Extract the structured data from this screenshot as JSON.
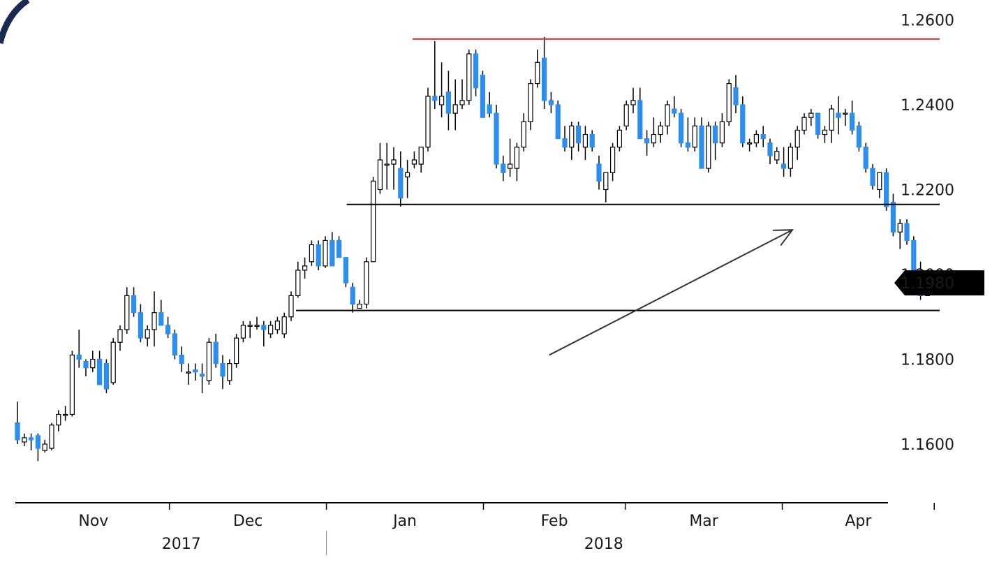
{
  "chart_data": {
    "type": "candlestick",
    "title": "",
    "xlabel": "",
    "ylabel": "",
    "ylim": [
      1.145,
      1.265
    ],
    "grid": false,
    "y_ticks": [
      "1.1600",
      "1.1800",
      "1.2000",
      "1.2200",
      "1.2400",
      "1.2600"
    ],
    "x_month_labels": [
      "Nov",
      "Dec",
      "Jan",
      "Feb",
      "Mar",
      "Apr"
    ],
    "x_year_labels": [
      "2017",
      "2018"
    ],
    "last_price_label": "1.1980",
    "last_price": 1.198,
    "horizontal_lines": [
      {
        "name": "resistance",
        "y": 1.2555,
        "x_start": "2018-01-18",
        "x_end": "2018-04-30",
        "color": "#e03030"
      },
      {
        "name": "support-upper",
        "y": 1.2165,
        "x_start": "2018-01-05",
        "x_end": "2018-04-30",
        "color": "#000000"
      },
      {
        "name": "support-lower",
        "y": 1.1915,
        "x_start": "2017-12-26",
        "x_end": "2018-04-30",
        "color": "#000000"
      }
    ],
    "arrow": {
      "from": {
        "date": "2018-02-14",
        "y": 1.181
      },
      "to": {
        "date": "2018-04-03",
        "y": 1.2105
      }
    },
    "series": [
      {
        "values": [
          [
            1.165,
            1.17,
            1.16,
            1.161
          ],
          [
            1.1605,
            1.1625,
            1.1595,
            1.1615
          ],
          [
            1.1615,
            1.1625,
            1.1585,
            1.161
          ],
          [
            1.162,
            1.1625,
            1.156,
            1.159
          ],
          [
            1.1585,
            1.161,
            1.158,
            1.16
          ],
          [
            1.159,
            1.165,
            1.1585,
            1.1645
          ],
          [
            1.1645,
            1.168,
            1.163,
            1.167
          ],
          [
            1.167,
            1.169,
            1.1655,
            1.167
          ],
          [
            1.167,
            1.182,
            1.1665,
            1.181
          ],
          [
            1.181,
            1.187,
            1.178,
            1.18
          ],
          [
            1.1795,
            1.18,
            1.176,
            1.178
          ],
          [
            1.178,
            1.182,
            1.177,
            1.18
          ],
          [
            1.18,
            1.182,
            1.174,
            1.174
          ],
          [
            1.179,
            1.18,
            1.172,
            1.173
          ],
          [
            1.1745,
            1.185,
            1.174,
            1.184
          ],
          [
            1.184,
            1.188,
            1.182,
            1.187
          ],
          [
            1.187,
            1.197,
            1.186,
            1.195
          ],
          [
            1.195,
            1.197,
            1.19,
            1.191
          ],
          [
            1.191,
            1.193,
            1.184,
            1.185
          ],
          [
            1.185,
            1.188,
            1.183,
            1.187
          ],
          [
            1.187,
            1.196,
            1.183,
            1.191
          ],
          [
            1.191,
            1.194,
            1.188,
            1.188
          ],
          [
            1.188,
            1.19,
            1.185,
            1.186
          ],
          [
            1.186,
            1.187,
            1.18,
            1.181
          ],
          [
            1.181,
            1.183,
            1.177,
            1.179
          ],
          [
            1.177,
            1.179,
            1.174,
            1.177
          ],
          [
            1.1775,
            1.179,
            1.175,
            1.177
          ],
          [
            1.1765,
            1.179,
            1.172,
            1.176
          ],
          [
            1.175,
            1.185,
            1.174,
            1.184
          ],
          [
            1.184,
            1.186,
            1.178,
            1.179
          ],
          [
            1.179,
            1.181,
            1.173,
            1.176
          ],
          [
            1.175,
            1.18,
            1.174,
            1.179
          ],
          [
            1.179,
            1.186,
            1.178,
            1.185
          ],
          [
            1.185,
            1.189,
            1.184,
            1.188
          ],
          [
            1.188,
            1.189,
            1.185,
            1.188
          ],
          [
            1.188,
            1.19,
            1.187,
            1.188
          ],
          [
            1.188,
            1.189,
            1.183,
            1.187
          ],
          [
            1.186,
            1.189,
            1.185,
            1.188
          ],
          [
            1.187,
            1.19,
            1.186,
            1.189
          ],
          [
            1.186,
            1.191,
            1.185,
            1.19
          ],
          [
            1.19,
            1.196,
            1.189,
            1.195
          ],
          [
            1.195,
            1.203,
            1.1945,
            1.201
          ],
          [
            1.201,
            1.204,
            1.199,
            1.202
          ],
          [
            1.203,
            1.208,
            1.202,
            1.207
          ],
          [
            1.207,
            1.208,
            1.201,
            1.202
          ],
          [
            1.202,
            1.209,
            1.2015,
            1.208
          ],
          [
            1.208,
            1.21,
            1.202,
            1.202
          ],
          [
            1.208,
            1.209,
            1.204,
            1.204
          ],
          [
            1.204,
            1.204,
            1.197,
            1.198
          ],
          [
            1.197,
            1.198,
            1.191,
            1.193
          ],
          [
            1.192,
            1.194,
            1.192,
            1.193
          ],
          [
            1.193,
            1.204,
            1.192,
            1.203
          ],
          [
            1.203,
            1.223,
            1.203,
            1.222
          ],
          [
            1.22,
            1.231,
            1.219,
            1.227
          ],
          [
            1.226,
            1.231,
            1.22,
            1.226
          ],
          [
            1.226,
            1.23,
            1.22,
            1.227
          ],
          [
            1.225,
            1.229,
            1.216,
            1.218
          ],
          [
            1.223,
            1.227,
            1.218,
            1.224
          ],
          [
            1.226,
            1.229,
            1.225,
            1.227
          ],
          [
            1.226,
            1.23,
            1.224,
            1.23
          ],
          [
            1.23,
            1.244,
            1.229,
            1.242
          ],
          [
            1.242,
            1.255,
            1.239,
            1.241
          ],
          [
            1.24,
            1.25,
            1.237,
            1.242
          ],
          [
            1.243,
            1.248,
            1.234,
            1.238
          ],
          [
            1.238,
            1.246,
            1.234,
            1.24
          ],
          [
            1.24,
            1.246,
            1.239,
            1.241
          ],
          [
            1.241,
            1.253,
            1.24,
            1.252
          ],
          [
            1.252,
            1.253,
            1.242,
            1.244
          ],
          [
            1.247,
            1.248,
            1.237,
            1.237
          ],
          [
            1.24,
            1.243,
            1.237,
            1.238
          ],
          [
            1.238,
            1.24,
            1.225,
            1.226
          ],
          [
            1.226,
            1.228,
            1.222,
            1.224
          ],
          [
            1.225,
            1.232,
            1.223,
            1.226
          ],
          [
            1.225,
            1.231,
            1.222,
            1.23
          ],
          [
            1.23,
            1.238,
            1.229,
            1.236
          ],
          [
            1.236,
            1.246,
            1.234,
            1.245
          ],
          [
            1.245,
            1.253,
            1.244,
            1.25
          ],
          [
            1.251,
            1.256,
            1.239,
            1.241
          ],
          [
            1.241,
            1.243,
            1.238,
            1.24
          ],
          [
            1.24,
            1.241,
            1.232,
            1.232
          ],
          [
            1.232,
            1.235,
            1.229,
            1.23
          ],
          [
            1.23,
            1.236,
            1.227,
            1.235
          ],
          [
            1.235,
            1.236,
            1.229,
            1.231
          ],
          [
            1.23,
            1.235,
            1.227,
            1.233
          ],
          [
            1.233,
            1.234,
            1.229,
            1.23
          ],
          [
            1.226,
            1.228,
            1.22,
            1.222
          ],
          [
            1.22,
            1.224,
            1.217,
            1.224
          ],
          [
            1.224,
            1.231,
            1.222,
            1.23
          ],
          [
            1.23,
            1.235,
            1.229,
            1.234
          ],
          [
            1.235,
            1.241,
            1.234,
            1.24
          ],
          [
            1.24,
            1.244,
            1.238,
            1.241
          ],
          [
            1.241,
            1.244,
            1.232,
            1.232
          ],
          [
            1.232,
            1.234,
            1.228,
            1.231
          ],
          [
            1.231,
            1.237,
            1.23,
            1.233
          ],
          [
            1.233,
            1.236,
            1.231,
            1.235
          ],
          [
            1.235,
            1.241,
            1.233,
            1.24
          ],
          [
            1.239,
            1.242,
            1.237,
            1.238
          ],
          [
            1.238,
            1.239,
            1.23,
            1.231
          ],
          [
            1.231,
            1.237,
            1.229,
            1.23
          ],
          [
            1.23,
            1.237,
            1.229,
            1.235
          ],
          [
            1.235,
            1.237,
            1.225,
            1.225
          ],
          [
            1.225,
            1.236,
            1.224,
            1.235
          ],
          [
            1.235,
            1.236,
            1.227,
            1.231
          ],
          [
            1.231,
            1.238,
            1.23,
            1.236
          ],
          [
            1.236,
            1.246,
            1.235,
            1.245
          ],
          [
            1.244,
            1.247,
            1.238,
            1.24
          ],
          [
            1.24,
            1.242,
            1.23,
            1.231
          ],
          [
            1.231,
            1.232,
            1.229,
            1.231
          ],
          [
            1.231,
            1.234,
            1.23,
            1.233
          ],
          [
            1.233,
            1.235,
            1.23,
            1.232
          ],
          [
            1.231,
            1.232,
            1.226,
            1.228
          ],
          [
            1.227,
            1.23,
            1.226,
            1.229
          ],
          [
            1.226,
            1.23,
            1.223,
            1.225
          ],
          [
            1.225,
            1.231,
            1.223,
            1.23
          ],
          [
            1.23,
            1.235,
            1.227,
            1.234
          ],
          [
            1.234,
            1.238,
            1.233,
            1.237
          ],
          [
            1.237,
            1.239,
            1.235,
            1.238
          ],
          [
            1.238,
            1.238,
            1.232,
            1.233
          ],
          [
            1.233,
            1.235,
            1.231,
            1.234
          ],
          [
            1.234,
            1.24,
            1.231,
            1.239
          ],
          [
            1.238,
            1.242,
            1.233,
            1.237
          ],
          [
            1.238,
            1.239,
            1.235,
            1.238
          ],
          [
            1.238,
            1.241,
            1.233,
            1.234
          ],
          [
            1.235,
            1.236,
            1.229,
            1.23
          ],
          [
            1.23,
            1.231,
            1.224,
            1.225
          ],
          [
            1.225,
            1.226,
            1.22,
            1.221
          ],
          [
            1.22,
            1.224,
            1.218,
            1.224
          ],
          [
            1.224,
            1.225,
            1.215,
            1.216
          ],
          [
            1.217,
            1.219,
            1.209,
            1.21
          ],
          [
            1.21,
            1.213,
            1.206,
            1.212
          ],
          [
            1.212,
            1.213,
            1.207,
            1.208
          ],
          [
            1.208,
            1.209,
            1.199,
            1.2
          ],
          [
            1.2,
            1.203,
            1.194,
            1.195
          ],
          [
            1.195,
            1.199,
            1.195,
            1.198
          ]
        ]
      }
    ]
  },
  "colors": {
    "candle_up_fill": "#ffffff",
    "candle_up_stroke": "#000000",
    "candle_down_fill": "#2b8ef0",
    "wick": "#000000",
    "resistance_line": "#e03030",
    "support_line": "#000000",
    "arrow": "#333333",
    "price_tag_bg": "#000000",
    "price_tag_text": "#ffffff",
    "corner_logo": "#1b2a52"
  }
}
